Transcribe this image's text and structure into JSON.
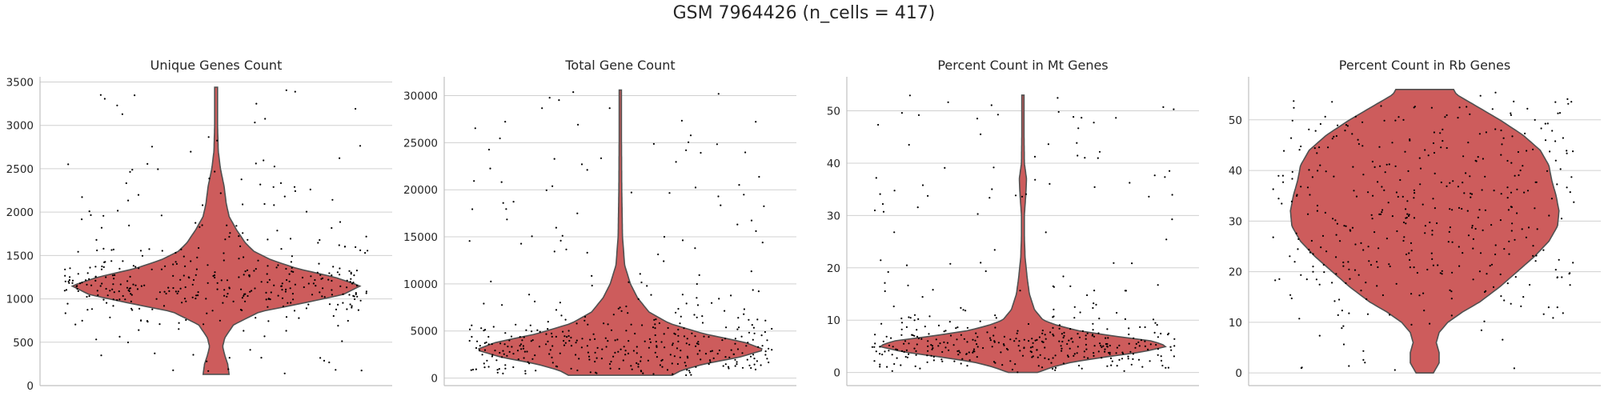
{
  "suptitle": "GSM 7964426 (n_cells = 417)",
  "colors": {
    "violin_fill": "#cd5c5c",
    "violin_edge": "#505050",
    "points": "#000000",
    "grid": "#d0d0d0",
    "axis": "#c0c0c0"
  },
  "chart_data": [
    {
      "type": "violin",
      "title": "Unique Genes Count",
      "ylim": [
        0,
        3560
      ],
      "yticks": [
        0,
        500,
        1000,
        1500,
        2000,
        2500,
        3000,
        3500
      ],
      "grid": true,
      "density_profile": [
        [
          130,
          0.09
        ],
        [
          250,
          0.08
        ],
        [
          350,
          0.06
        ],
        [
          450,
          0.045
        ],
        [
          550,
          0.06
        ],
        [
          700,
          0.12
        ],
        [
          850,
          0.3
        ],
        [
          950,
          0.6
        ],
        [
          1050,
          0.88
        ],
        [
          1150,
          1.0
        ],
        [
          1250,
          0.82
        ],
        [
          1350,
          0.56
        ],
        [
          1450,
          0.38
        ],
        [
          1550,
          0.26
        ],
        [
          1650,
          0.2
        ],
        [
          1800,
          0.14
        ],
        [
          1950,
          0.09
        ],
        [
          2100,
          0.07
        ],
        [
          2300,
          0.055
        ],
        [
          2500,
          0.03
        ],
        [
          2700,
          0.015
        ],
        [
          3000,
          0.01
        ],
        [
          3440,
          0.01
        ]
      ],
      "y_max": 3440,
      "y_min": 130
    },
    {
      "type": "violin",
      "title": "Total Gene Count",
      "ylim": [
        -800,
        32000
      ],
      "yticks": [
        0,
        5000,
        10000,
        15000,
        20000,
        25000,
        30000
      ],
      "grid": true,
      "density_profile": [
        [
          300,
          0.36
        ],
        [
          800,
          0.42
        ],
        [
          1500,
          0.58
        ],
        [
          2200,
          0.82
        ],
        [
          3000,
          1.0
        ],
        [
          3800,
          0.86
        ],
        [
          4700,
          0.58
        ],
        [
          5800,
          0.34
        ],
        [
          7000,
          0.2
        ],
        [
          8500,
          0.12
        ],
        [
          10000,
          0.07
        ],
        [
          12000,
          0.03
        ],
        [
          15000,
          0.015
        ],
        [
          20000,
          0.01
        ],
        [
          25000,
          0.008
        ],
        [
          30600,
          0.008
        ]
      ],
      "y_max": 30600,
      "y_min": 300
    },
    {
      "type": "violin",
      "title": "Percent Count in Mt Genes",
      "ylim": [
        -2.5,
        56.5
      ],
      "yticks": [
        0,
        10,
        20,
        30,
        40,
        50
      ],
      "grid": true,
      "density_profile": [
        [
          0,
          0.1
        ],
        [
          1,
          0.2
        ],
        [
          2,
          0.34
        ],
        [
          3,
          0.58
        ],
        [
          4,
          0.84
        ],
        [
          5,
          1.0
        ],
        [
          6,
          0.9
        ],
        [
          7,
          0.62
        ],
        [
          8,
          0.38
        ],
        [
          9,
          0.24
        ],
        [
          10,
          0.14
        ],
        [
          12,
          0.08
        ],
        [
          15,
          0.045
        ],
        [
          18,
          0.03
        ],
        [
          22,
          0.015
        ],
        [
          26,
          0.01
        ],
        [
          30,
          0.01
        ],
        [
          34,
          0.02
        ],
        [
          37,
          0.025
        ],
        [
          40,
          0.01
        ],
        [
          45,
          0.008
        ],
        [
          53,
          0.008
        ]
      ],
      "y_max": 53,
      "y_min": 0
    },
    {
      "type": "violin",
      "title": "Percent Count in Rb Genes",
      "ylim": [
        -2.5,
        58.5
      ],
      "yticks": [
        0,
        10,
        20,
        30,
        40,
        50
      ],
      "grid": true,
      "density_profile": [
        [
          0,
          0.06
        ],
        [
          2,
          0.1
        ],
        [
          4,
          0.1
        ],
        [
          6,
          0.08
        ],
        [
          8,
          0.1
        ],
        [
          10,
          0.16
        ],
        [
          12,
          0.26
        ],
        [
          14,
          0.38
        ],
        [
          17,
          0.52
        ],
        [
          20,
          0.64
        ],
        [
          23,
          0.76
        ],
        [
          26,
          0.86
        ],
        [
          29,
          0.92
        ],
        [
          32,
          0.93
        ],
        [
          35,
          0.91
        ],
        [
          38,
          0.88
        ],
        [
          41,
          0.86
        ],
        [
          44,
          0.8
        ],
        [
          47,
          0.68
        ],
        [
          50,
          0.52
        ],
        [
          53,
          0.34
        ],
        [
          55,
          0.22
        ],
        [
          56,
          0.2
        ]
      ],
      "y_max": 56,
      "y_min": 0
    }
  ]
}
